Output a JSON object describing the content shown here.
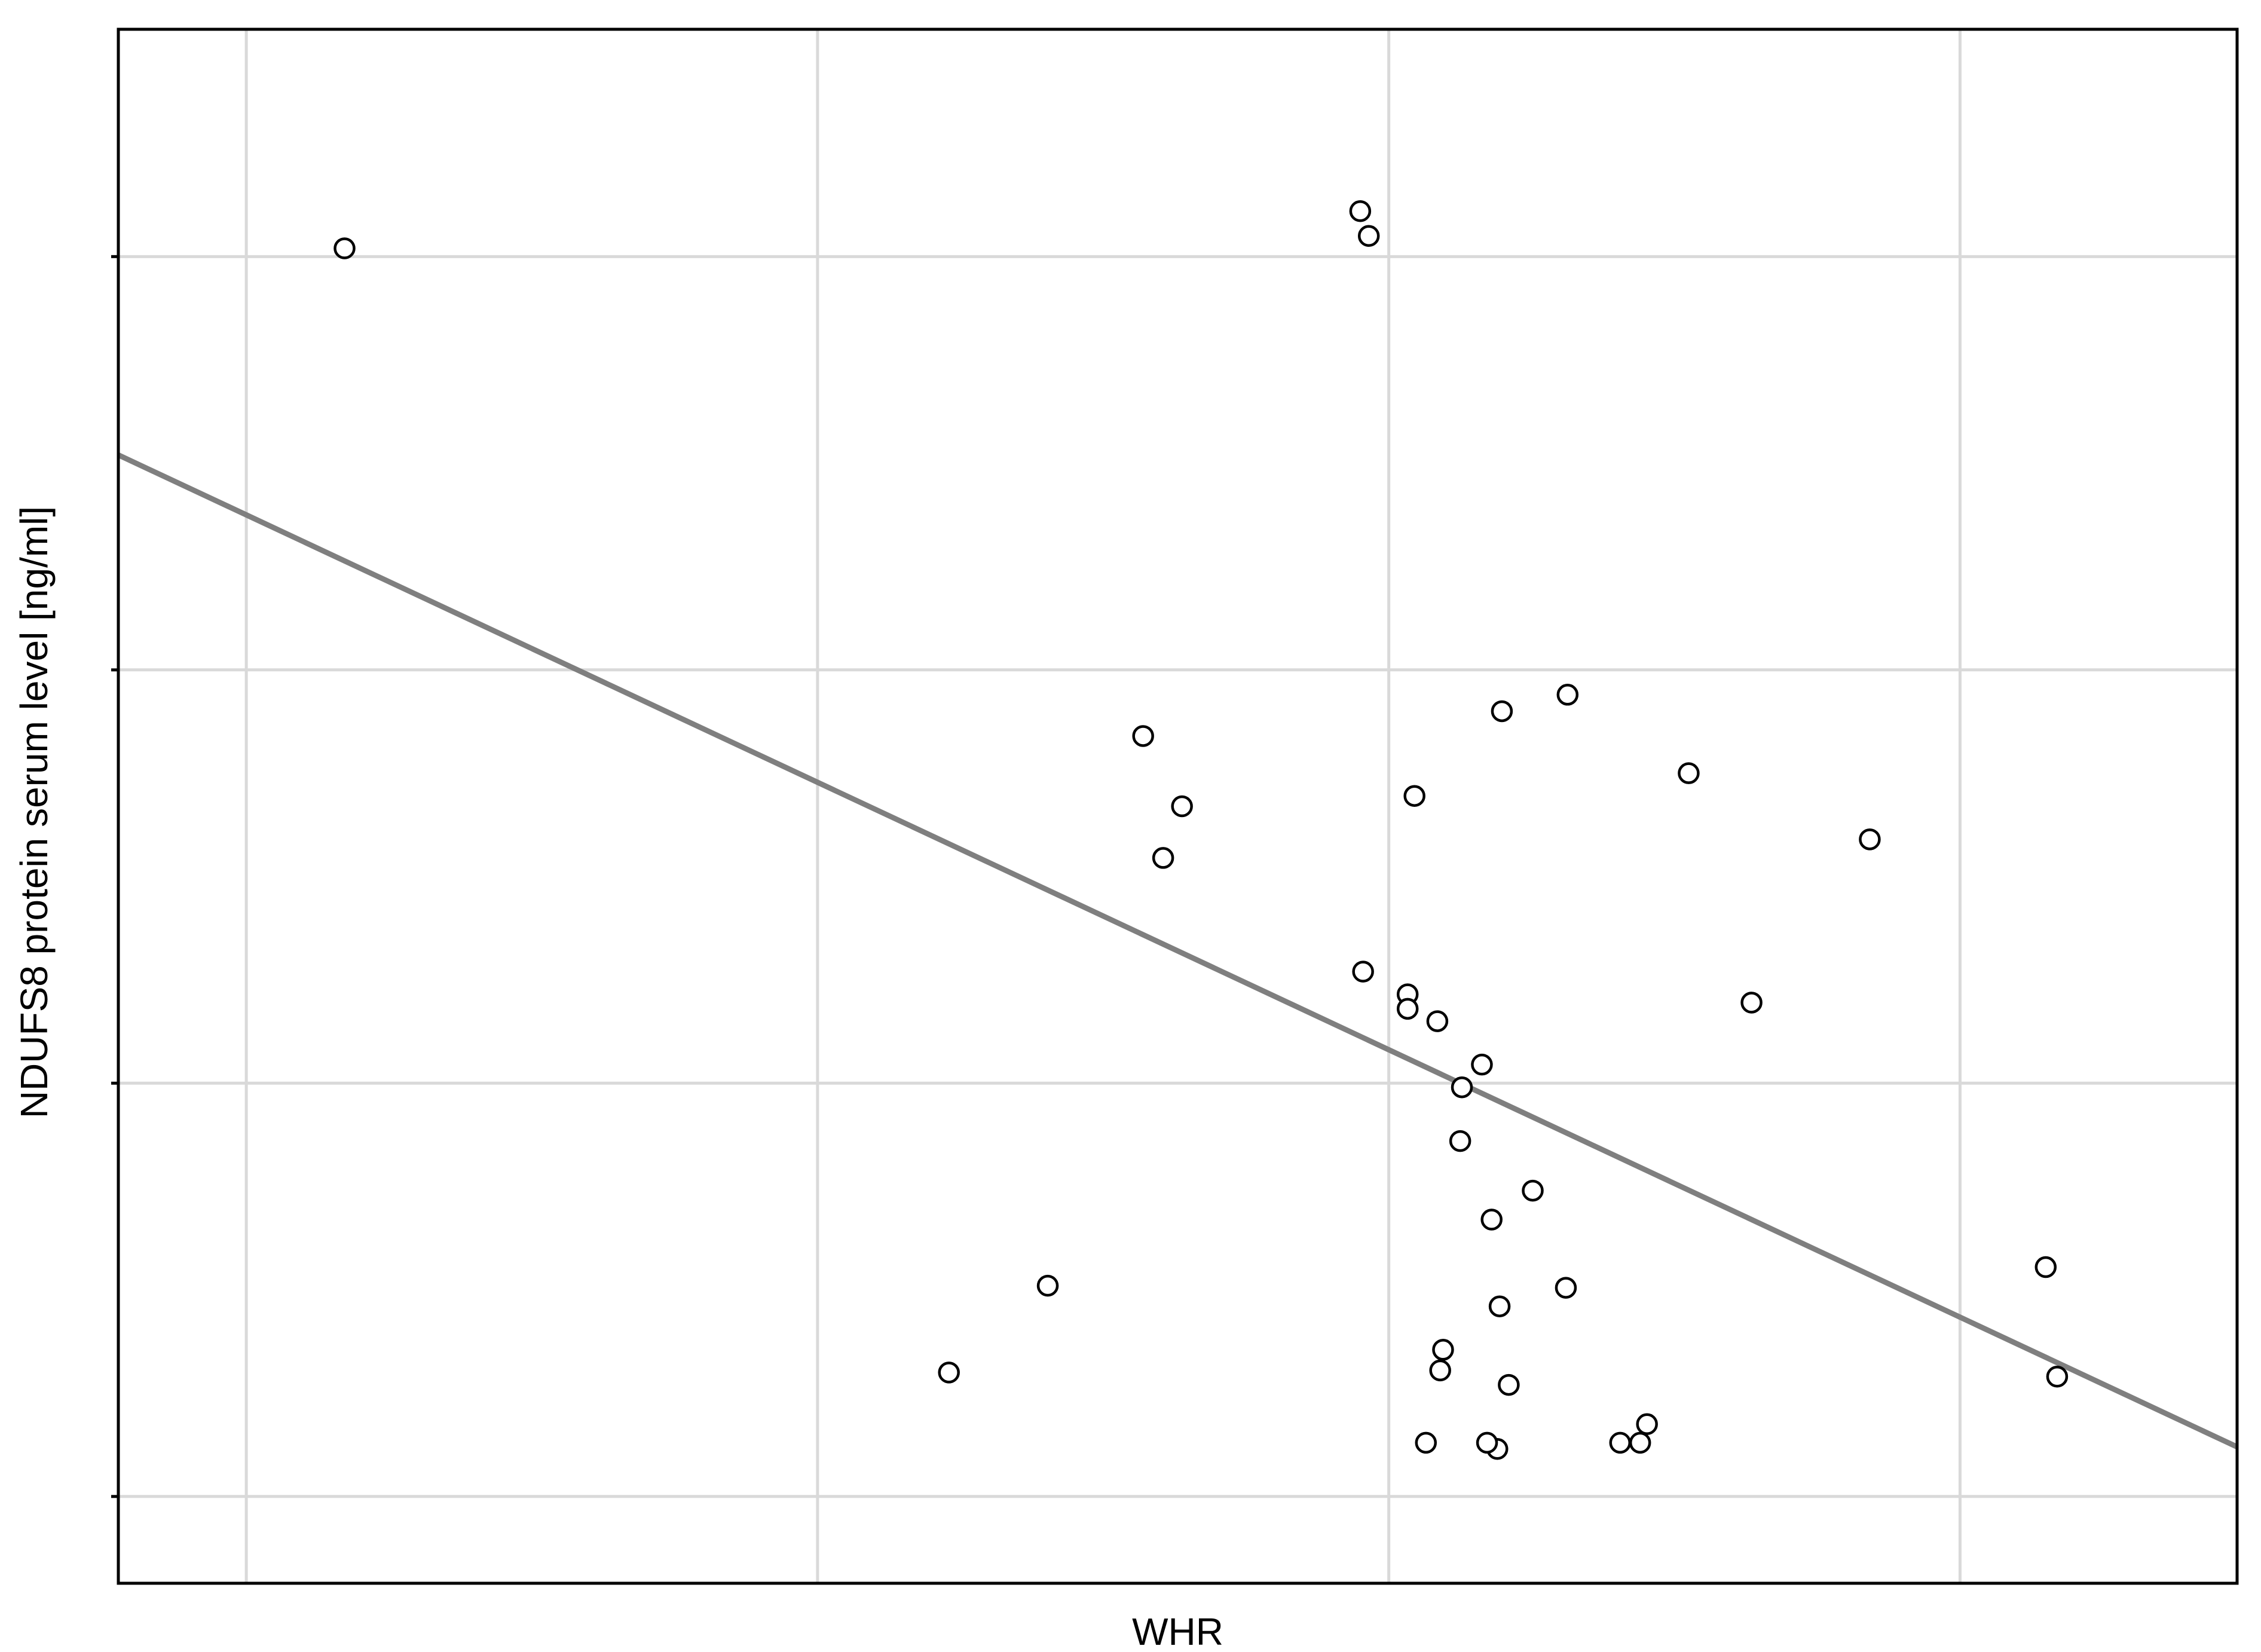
{
  "chart_data": {
    "type": "scatter",
    "title": "",
    "xlabel": "WHR",
    "ylabel": "NDUFS8 protein serum level [ng/ml]",
    "x_tick_labels_shown": false,
    "y_tick_labels_shown": false,
    "grid": true,
    "legend": "none",
    "marker": "open-circle",
    "x_unit_note": "x in grid-interval units (0 = first vertical gridline); tick values not printed",
    "y_unit_note": "y in grid-interval units (0 = lowest horizontal gridline); tick values not printed",
    "xlim": [
      -0.224,
      3.485
    ],
    "ylim": [
      -0.21,
      3.55
    ],
    "x_gridlines": [
      0,
      1,
      2,
      3
    ],
    "y_gridlines": [
      0,
      1,
      2,
      3
    ],
    "points": [
      {
        "x": 0.172,
        "y": 3.02
      },
      {
        "x": 1.95,
        "y": 3.11
      },
      {
        "x": 1.965,
        "y": 3.05
      },
      {
        "x": 1.57,
        "y": 1.84
      },
      {
        "x": 1.638,
        "y": 1.67
      },
      {
        "x": 1.605,
        "y": 1.545
      },
      {
        "x": 1.955,
        "y": 1.27
      },
      {
        "x": 2.033,
        "y": 1.215
      },
      {
        "x": 2.033,
        "y": 1.18
      },
      {
        "x": 2.085,
        "y": 1.15
      },
      {
        "x": 2.045,
        "y": 1.695
      },
      {
        "x": 2.198,
        "y": 1.9
      },
      {
        "x": 2.313,
        "y": 1.94
      },
      {
        "x": 2.525,
        "y": 1.75
      },
      {
        "x": 2.842,
        "y": 1.59
      },
      {
        "x": 2.125,
        "y": 0.86
      },
      {
        "x": 2.635,
        "y": 1.195
      },
      {
        "x": 2.163,
        "y": 1.045
      },
      {
        "x": 2.128,
        "y": 0.99
      },
      {
        "x": 2.252,
        "y": 0.74
      },
      {
        "x": 2.18,
        "y": 0.67
      },
      {
        "x": 1.403,
        "y": 0.51
      },
      {
        "x": 1.23,
        "y": 0.3
      },
      {
        "x": 2.31,
        "y": 0.505
      },
      {
        "x": 2.194,
        "y": 0.46
      },
      {
        "x": 2.095,
        "y": 0.355
      },
      {
        "x": 2.09,
        "y": 0.305
      },
      {
        "x": 2.21,
        "y": 0.27
      },
      {
        "x": 2.065,
        "y": 0.13
      },
      {
        "x": 2.19,
        "y": 0.115
      },
      {
        "x": 2.172,
        "y": 0.13
      },
      {
        "x": 2.405,
        "y": 0.13
      },
      {
        "x": 2.44,
        "y": 0.13
      },
      {
        "x": 2.452,
        "y": 0.175
      },
      {
        "x": 3.15,
        "y": 0.555
      },
      {
        "x": 3.17,
        "y": 0.29
      }
    ],
    "fit_line": {
      "x": [
        -0.224,
        3.485
      ],
      "y": [
        2.52,
        0.12
      ]
    }
  }
}
